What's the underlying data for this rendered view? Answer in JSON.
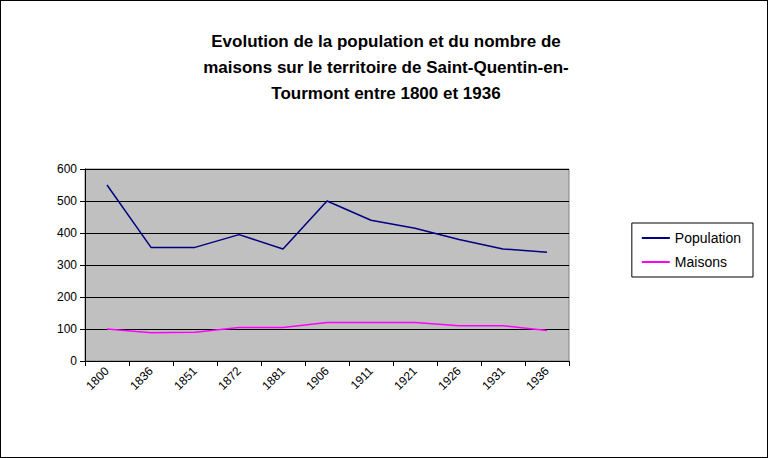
{
  "chart_data": {
    "type": "line",
    "title": "Evolution de la population et du nombre de\nmaisons sur le territoire de Saint-Quentin-en-\nTourmont entre 1800 et 1936",
    "categories": [
      "1800",
      "1836",
      "1851",
      "1872",
      "1881",
      "1906",
      "1911",
      "1921",
      "1926",
      "1931",
      "1936"
    ],
    "series": [
      {
        "name": "Population",
        "color": "#000080",
        "values": [
          550,
          355,
          355,
          395,
          350,
          500,
          440,
          415,
          380,
          350,
          340
        ]
      },
      {
        "name": "Maisons",
        "color": "#ff00ff",
        "values": [
          100,
          88,
          90,
          105,
          105,
          120,
          120,
          120,
          110,
          110,
          95
        ]
      }
    ],
    "ylim": [
      0,
      600
    ],
    "yticks": [
      0,
      100,
      200,
      300,
      400,
      500,
      600
    ],
    "grid": true,
    "legend": "right"
  }
}
